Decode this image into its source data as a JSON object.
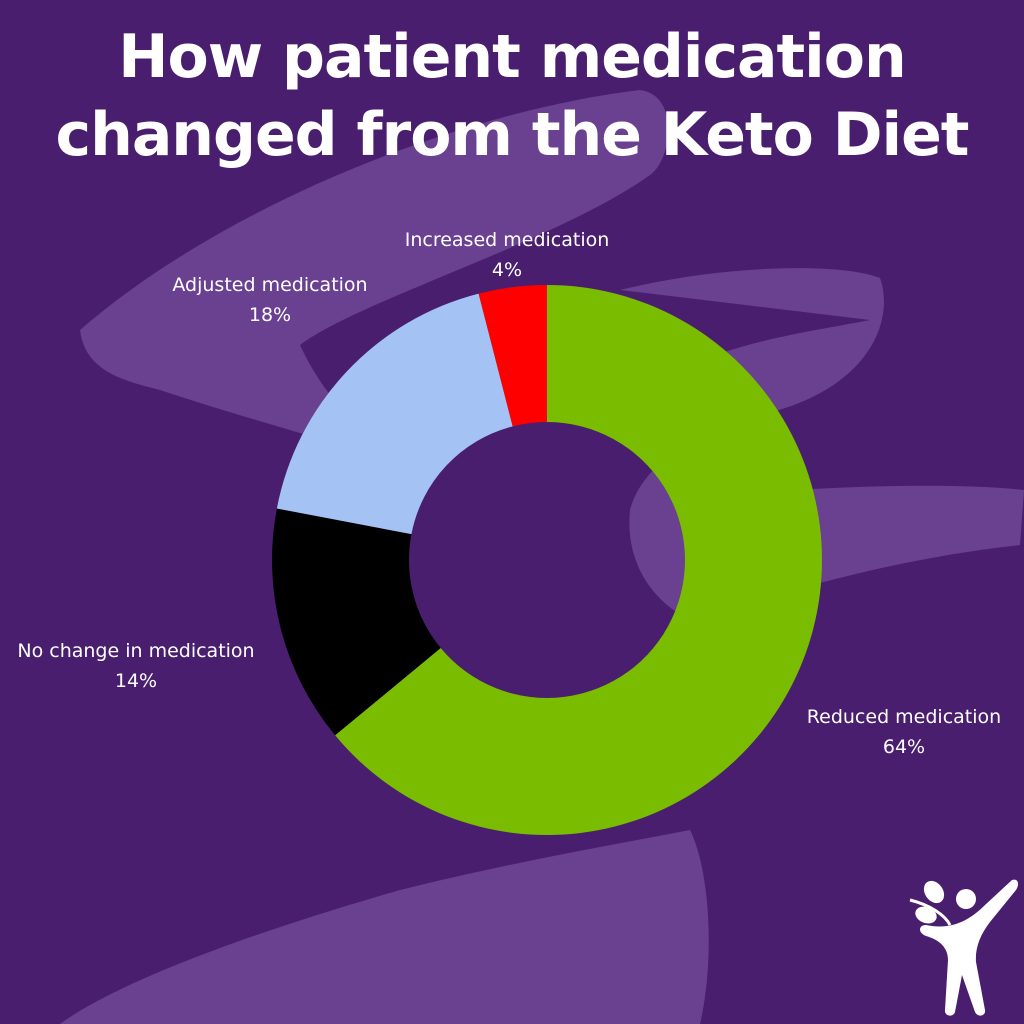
{
  "title_line1": "How patient medication",
  "title_line2": "changed from the Keto Diet",
  "colors": {
    "background": "#4a1e6e",
    "brush": "#6a4090",
    "text": "#ffffff"
  },
  "logo": {
    "icon": "person-with-leaves-logo"
  },
  "chart_data": {
    "type": "pie",
    "variant": "donut",
    "title": "How patient medication changed from the Keto Diet",
    "start_angle_deg": 0,
    "direction": "clockwise",
    "slices": [
      {
        "label": "Reduced medication",
        "value": 64,
        "display": "64%",
        "color": "#79bc00"
      },
      {
        "label": "No change in medication",
        "value": 14,
        "display": "14%",
        "color": "#000000"
      },
      {
        "label": "Adjusted medication",
        "value": 18,
        "display": "18%",
        "color": "#a4c2f4"
      },
      {
        "label": "Increased medication",
        "value": 4,
        "display": "4%",
        "color": "#ff0000"
      }
    ]
  }
}
